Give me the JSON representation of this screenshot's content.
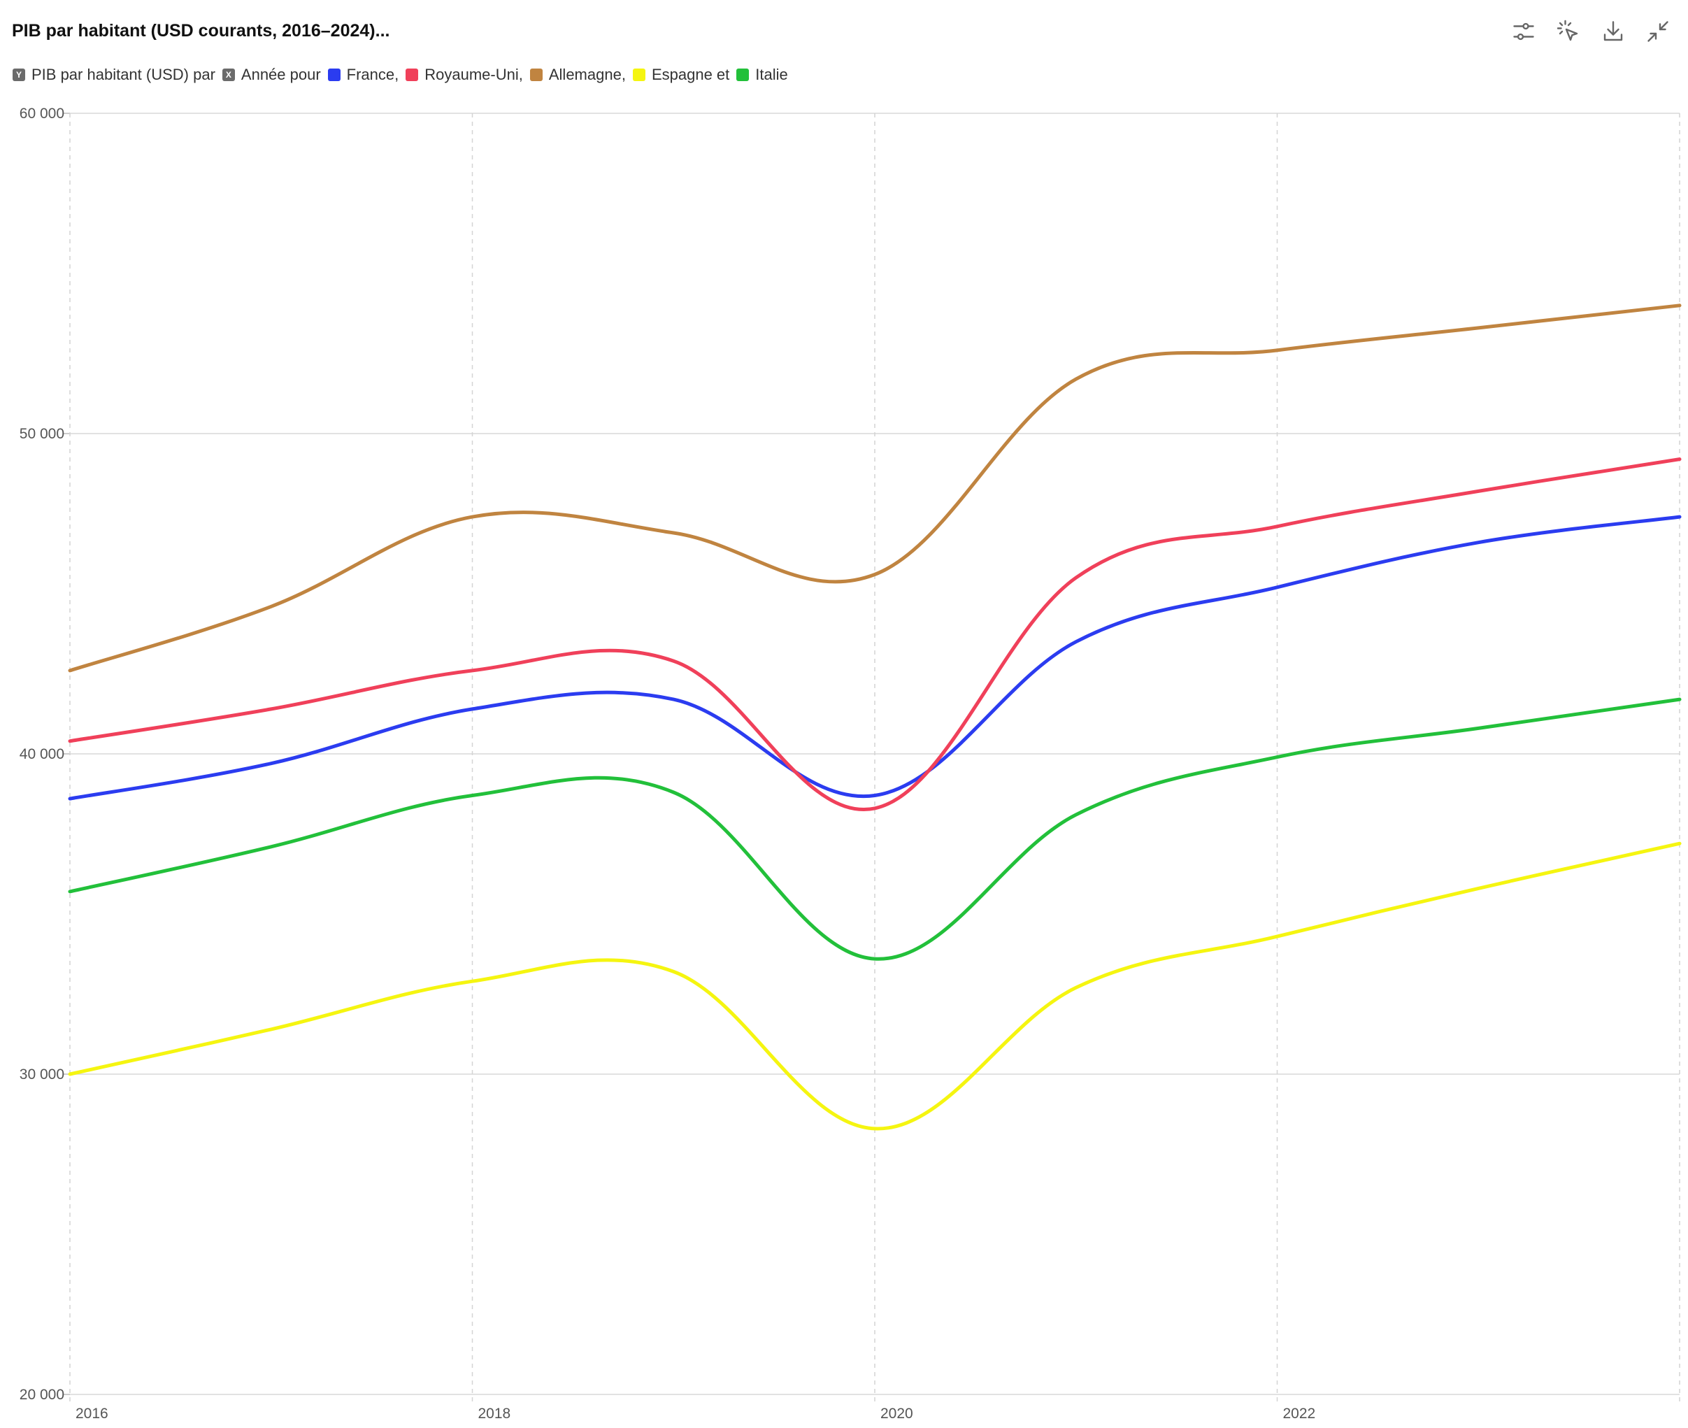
{
  "header": {
    "title": "PIB par habitant (USD courants, 2016–2024)...",
    "toolbar": [
      {
        "name": "settings-sliders-icon"
      },
      {
        "name": "select-cursor-icon"
      },
      {
        "name": "download-icon"
      },
      {
        "name": "collapse-icon"
      }
    ]
  },
  "legend": {
    "y_badge": "Y",
    "y_label": "PIB par habitant (USD) par",
    "x_badge": "X",
    "x_label": "Année pour",
    "series": [
      {
        "label": "France,",
        "color": "#2b3cf0"
      },
      {
        "label": "Royaume-Uni,",
        "color": "#f0405a"
      },
      {
        "label": "Allemagne,",
        "color": "#c08440"
      },
      {
        "label": "Espagne et",
        "color": "#f5f510"
      },
      {
        "label": "Italie",
        "color": "#22c03a"
      }
    ]
  },
  "chart_data": {
    "type": "line",
    "x": [
      2016,
      2017,
      2018,
      2019,
      2020,
      2021,
      2022,
      2023,
      2024
    ],
    "x_ticks": [
      "2016",
      "2018",
      "2020",
      "2022"
    ],
    "y_ticks": [
      "20 000",
      "30 000",
      "40 000",
      "50 000",
      "60 000"
    ],
    "xlim": [
      2016,
      2024
    ],
    "ylim": [
      20000,
      60000
    ],
    "grid": true,
    "series": [
      {
        "name": "France",
        "color": "#2b3cf0",
        "values": [
          38600,
          39700,
          41400,
          41700,
          38700,
          43500,
          45200,
          46600,
          47400
        ]
      },
      {
        "name": "Royaume-Uni",
        "color": "#f0405a",
        "values": [
          40400,
          41400,
          42600,
          42900,
          38300,
          45500,
          47100,
          48200,
          49200
        ]
      },
      {
        "name": "Allemagne",
        "color": "#c08440",
        "values": [
          42600,
          44600,
          47400,
          46900,
          45600,
          51700,
          52600,
          53300,
          54000
        ]
      },
      {
        "name": "Espagne",
        "color": "#f5f510",
        "values": [
          30000,
          31400,
          32900,
          33200,
          28300,
          32700,
          34300,
          35800,
          37200
        ]
      },
      {
        "name": "Italie",
        "color": "#22c03a",
        "values": [
          35700,
          37100,
          38700,
          38800,
          33600,
          38100,
          39900,
          40800,
          41700
        ]
      }
    ]
  }
}
